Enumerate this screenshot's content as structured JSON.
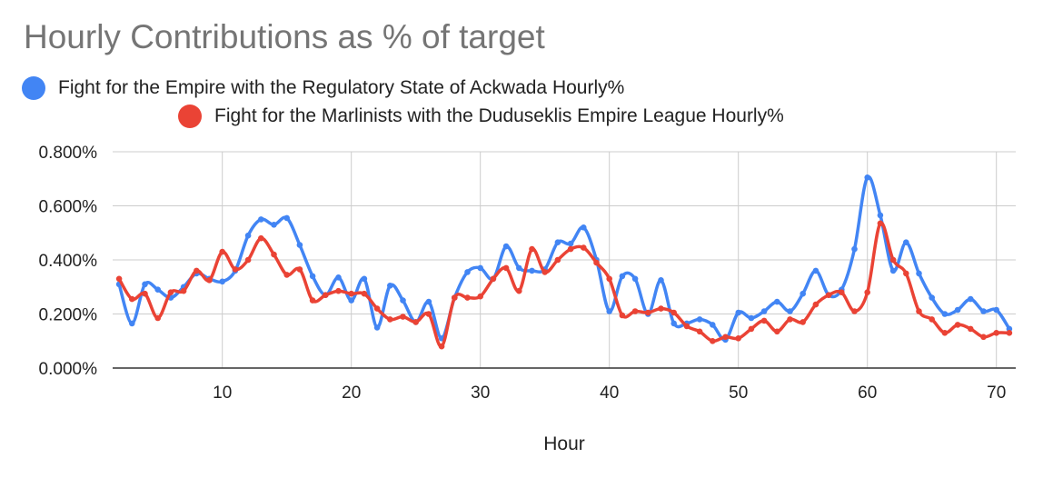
{
  "chart_data": {
    "type": "line",
    "title": "Hourly Contributions as % of target",
    "xlabel": "Hour",
    "ylabel": "",
    "xlim": [
      1.5,
      71.5
    ],
    "ylim": [
      0,
      0.8
    ],
    "x_ticks": [
      10,
      20,
      30,
      40,
      50,
      60,
      70
    ],
    "x_tick_labels": [
      "10",
      "20",
      "30",
      "40",
      "50",
      "60",
      "70"
    ],
    "y_ticks": [
      0,
      0.2,
      0.4,
      0.6,
      0.8
    ],
    "y_tick_labels": [
      "0.000%",
      "0.200%",
      "0.400%",
      "0.600%",
      "0.800%"
    ],
    "grid": true,
    "legend_position": "top",
    "x": [
      2,
      3,
      4,
      5,
      6,
      7,
      8,
      9,
      10,
      11,
      12,
      13,
      14,
      15,
      16,
      17,
      18,
      19,
      20,
      21,
      22,
      23,
      24,
      25,
      26,
      27,
      28,
      29,
      30,
      31,
      32,
      33,
      34,
      35,
      36,
      37,
      38,
      39,
      40,
      41,
      42,
      43,
      44,
      45,
      46,
      47,
      48,
      49,
      50,
      51,
      52,
      53,
      54,
      55,
      56,
      57,
      58,
      59,
      60,
      61,
      62,
      63,
      64,
      65,
      66,
      67,
      68,
      69,
      70,
      71
    ],
    "series": [
      {
        "name": "Fight for the Empire with the Regulatory State of Ackwada Hourly%",
        "color": "#4285f4",
        "values": [
          0.31,
          0.165,
          0.31,
          0.29,
          0.26,
          0.3,
          0.35,
          0.33,
          0.32,
          0.36,
          0.49,
          0.55,
          0.53,
          0.555,
          0.455,
          0.34,
          0.27,
          0.335,
          0.25,
          0.33,
          0.15,
          0.305,
          0.25,
          0.17,
          0.245,
          0.11,
          0.26,
          0.355,
          0.37,
          0.33,
          0.45,
          0.37,
          0.36,
          0.365,
          0.465,
          0.46,
          0.52,
          0.4,
          0.21,
          0.34,
          0.33,
          0.2,
          0.325,
          0.165,
          0.165,
          0.18,
          0.16,
          0.105,
          0.205,
          0.185,
          0.21,
          0.245,
          0.21,
          0.275,
          0.36,
          0.27,
          0.29,
          0.44,
          0.705,
          0.565,
          0.36,
          0.465,
          0.35,
          0.26,
          0.2,
          0.215,
          0.255,
          0.21,
          0.215,
          0.145
        ]
      },
      {
        "name": "Fight for the Marlinists with the Duduseklis Empire League Hourly%",
        "color": "#ea4335",
        "values": [
          0.33,
          0.255,
          0.275,
          0.185,
          0.28,
          0.285,
          0.36,
          0.325,
          0.43,
          0.365,
          0.4,
          0.48,
          0.42,
          0.345,
          0.365,
          0.25,
          0.27,
          0.285,
          0.275,
          0.275,
          0.22,
          0.18,
          0.19,
          0.17,
          0.2,
          0.08,
          0.26,
          0.26,
          0.265,
          0.33,
          0.37,
          0.285,
          0.44,
          0.355,
          0.4,
          0.44,
          0.445,
          0.39,
          0.33,
          0.195,
          0.21,
          0.205,
          0.22,
          0.205,
          0.155,
          0.135,
          0.1,
          0.115,
          0.11,
          0.145,
          0.175,
          0.135,
          0.18,
          0.17,
          0.235,
          0.27,
          0.28,
          0.21,
          0.28,
          0.535,
          0.4,
          0.35,
          0.21,
          0.18,
          0.13,
          0.16,
          0.145,
          0.115,
          0.13,
          0.13
        ]
      }
    ]
  }
}
